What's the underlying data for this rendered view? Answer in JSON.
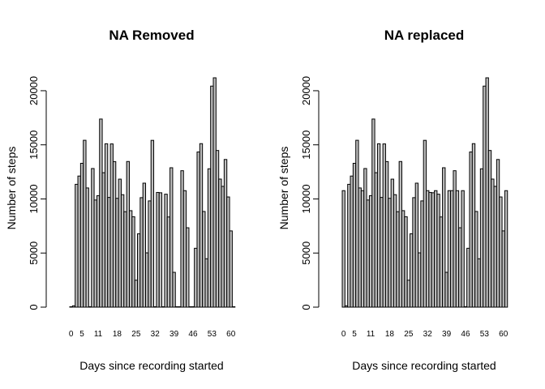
{
  "chart_data": [
    {
      "type": "bar",
      "title": "NA Removed",
      "xlabel": "Days since recording started",
      "ylabel": "Number of steps",
      "ylim": [
        0,
        21194
      ],
      "yticks": [
        0,
        5000,
        10000,
        15000,
        20000
      ],
      "x_tick_labels": [
        "0",
        "5",
        "11",
        "18",
        "25",
        "32",
        "39",
        "46",
        "53",
        "60"
      ],
      "x_tick_positions": [
        1,
        5,
        11,
        18,
        25,
        32,
        39,
        46,
        53,
        60
      ],
      "categories": [
        1,
        2,
        3,
        4,
        5,
        6,
        7,
        8,
        9,
        10,
        11,
        12,
        13,
        14,
        15,
        16,
        17,
        18,
        19,
        20,
        21,
        22,
        23,
        24,
        25,
        26,
        27,
        28,
        29,
        30,
        31,
        32,
        33,
        34,
        35,
        36,
        37,
        38,
        39,
        40,
        41,
        42,
        43,
        44,
        45,
        46,
        47,
        48,
        49,
        50,
        51,
        52,
        53,
        54,
        55,
        56,
        57,
        58,
        59,
        60,
        61
      ],
      "values": [
        0,
        126,
        11352,
        12116,
        13294,
        15420,
        11015,
        0,
        12811,
        9900,
        10304,
        17382,
        12426,
        15098,
        10139,
        15084,
        13452,
        10056,
        11829,
        10395,
        8821,
        13460,
        8918,
        8355,
        2492,
        6778,
        10119,
        11458,
        5018,
        9819,
        15414,
        0,
        10600,
        10571,
        0,
        10439,
        8334,
        12883,
        3219,
        0,
        0,
        12608,
        10765,
        7336,
        0,
        41,
        5441,
        14339,
        15110,
        8841,
        4472,
        12787,
        20427,
        21194,
        14478,
        11834,
        11162,
        13646,
        10183,
        7047,
        0
      ],
      "grid": false
    },
    {
      "type": "bar",
      "title": "NA replaced",
      "xlabel": "Days since recording started",
      "ylabel": "Number of steps",
      "ylim": [
        0,
        21194
      ],
      "yticks": [
        0,
        5000,
        10000,
        15000,
        20000
      ],
      "x_tick_labels": [
        "0",
        "5",
        "11",
        "18",
        "25",
        "32",
        "39",
        "46",
        "53",
        "60"
      ],
      "x_tick_positions": [
        1,
        5,
        11,
        18,
        25,
        32,
        39,
        46,
        53,
        60
      ],
      "categories": [
        1,
        2,
        3,
        4,
        5,
        6,
        7,
        8,
        9,
        10,
        11,
        12,
        13,
        14,
        15,
        16,
        17,
        18,
        19,
        20,
        21,
        22,
        23,
        24,
        25,
        26,
        27,
        28,
        29,
        30,
        31,
        32,
        33,
        34,
        35,
        36,
        37,
        38,
        39,
        40,
        41,
        42,
        43,
        44,
        45,
        46,
        47,
        48,
        49,
        50,
        51,
        52,
        53,
        54,
        55,
        56,
        57,
        58,
        59,
        60,
        61
      ],
      "values": [
        10766,
        126,
        11352,
        12116,
        13294,
        15420,
        11015,
        10766,
        12811,
        9900,
        10304,
        17382,
        12426,
        15098,
        10139,
        15084,
        13452,
        10056,
        11829,
        10395,
        8821,
        13460,
        8918,
        8355,
        2492,
        6778,
        10119,
        11458,
        5018,
        9819,
        15414,
        10766,
        10600,
        10571,
        10766,
        10439,
        8334,
        12883,
        3219,
        10766,
        10766,
        12608,
        10765,
        7336,
        10766,
        41,
        5441,
        14339,
        15110,
        8841,
        4472,
        12787,
        20427,
        21194,
        14478,
        11834,
        11162,
        13646,
        10183,
        7047,
        10766
      ],
      "grid": false
    }
  ]
}
